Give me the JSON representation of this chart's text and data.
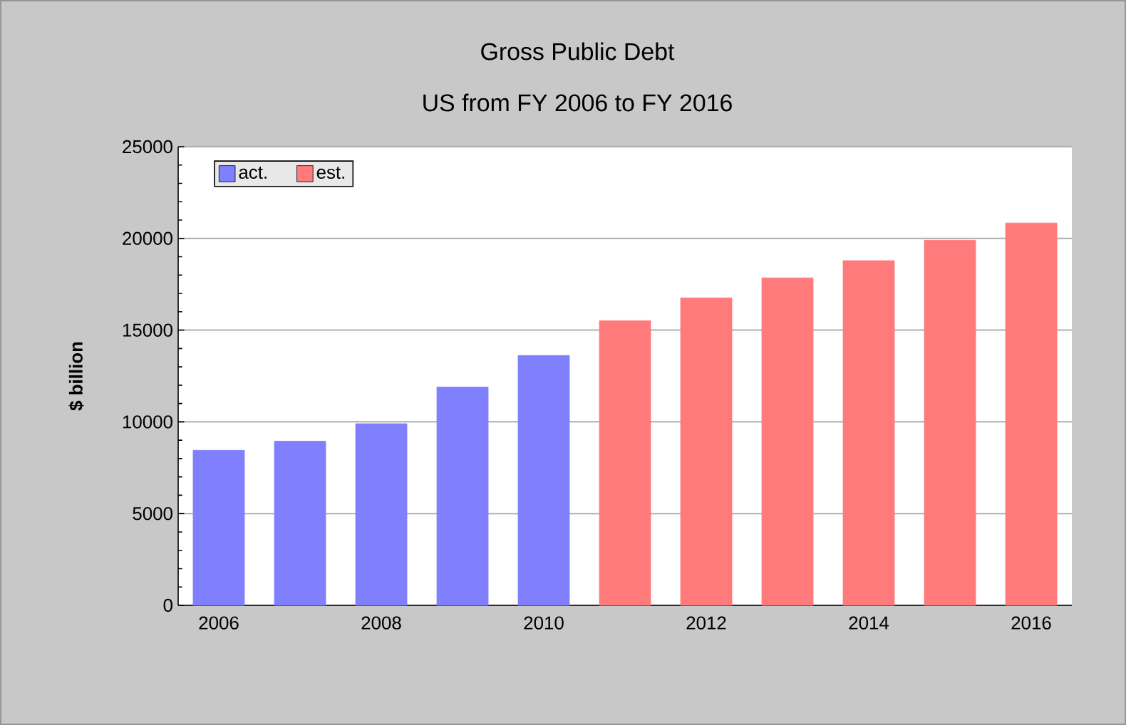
{
  "chart_data": {
    "type": "bar",
    "title": "Gross Public Debt",
    "subtitle": "US from FY 2006 to FY 2016",
    "ylabel": "$ billion",
    "categories": [
      "2006",
      null,
      "2008",
      null,
      "2010",
      null,
      "2012",
      null,
      "2014",
      null,
      "2016"
    ],
    "series": [
      {
        "name": "act.",
        "color": "#8080ff",
        "values": [
          8450,
          8950,
          9900,
          11900,
          13620,
          null,
          null,
          null,
          null,
          null,
          null
        ]
      },
      {
        "name": "est.",
        "color": "#ff7b7b",
        "values": [
          null,
          null,
          null,
          null,
          null,
          15520,
          16760,
          17850,
          18790,
          19900,
          20840
        ]
      }
    ],
    "ylim": [
      0,
      25000
    ],
    "yticks": [
      0,
      5000,
      10000,
      15000,
      20000,
      25000
    ],
    "grid": "y",
    "legend": "top left"
  }
}
